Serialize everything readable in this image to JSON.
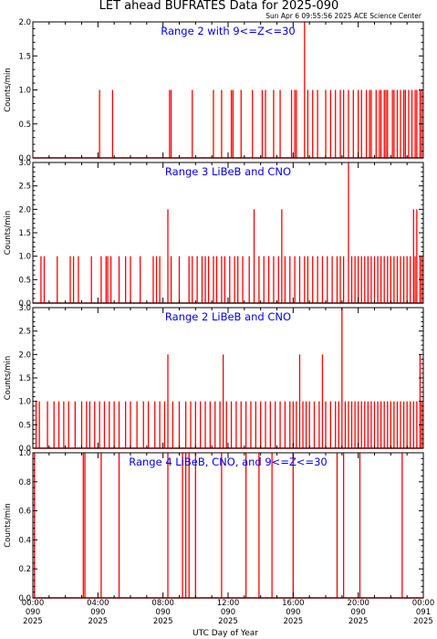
{
  "title": "LET ahead BUFRATES Data for 2025-090",
  "timestamp": "Sun Apr  6 09:55:56 2025 ACE Science Center",
  "xlabel": "UTC Day of Year",
  "colors": {
    "data": "#ff0000",
    "panel_label": "#0000ff",
    "axis": "#000000"
  },
  "chart_data": [
    {
      "type": "line",
      "title": "Range 2 with 9<=Z<=30",
      "ylabel": "Counts/min",
      "xlim": [
        0,
        24
      ],
      "ylim": [
        0,
        2.0
      ],
      "yticks": [
        0.0,
        0.5,
        1.0,
        1.5,
        2.0
      ],
      "ytick_labels": [
        "0.0",
        "0.5",
        "1.0",
        "1.5",
        "2.0"
      ],
      "series": [
        {
          "values": [
            [
              4.1,
              1
            ],
            [
              4.9,
              1
            ],
            [
              8.4,
              1
            ],
            [
              8.5,
              1
            ],
            [
              9.8,
              1
            ],
            [
              11.1,
              1
            ],
            [
              11.6,
              1
            ],
            [
              12.2,
              1
            ],
            [
              12.3,
              1
            ],
            [
              12.8,
              1
            ],
            [
              13.5,
              1
            ],
            [
              14.1,
              1
            ],
            [
              14.3,
              1
            ],
            [
              14.8,
              1
            ],
            [
              15.2,
              1
            ],
            [
              15.9,
              1
            ],
            [
              16.1,
              1
            ],
            [
              16.2,
              1
            ],
            [
              16.7,
              2
            ],
            [
              16.9,
              1
            ],
            [
              17.2,
              1
            ],
            [
              17.5,
              1
            ],
            [
              18.0,
              1
            ],
            [
              18.3,
              1
            ],
            [
              18.6,
              1
            ],
            [
              18.9,
              1
            ],
            [
              19.1,
              1
            ],
            [
              19.4,
              1
            ],
            [
              19.7,
              1
            ],
            [
              20.0,
              1
            ],
            [
              20.2,
              1
            ],
            [
              20.5,
              1
            ],
            [
              20.7,
              1
            ],
            [
              20.8,
              1
            ],
            [
              21.1,
              1
            ],
            [
              21.3,
              1
            ],
            [
              21.4,
              1
            ],
            [
              21.6,
              1
            ],
            [
              21.7,
              1
            ],
            [
              21.8,
              1
            ],
            [
              22.1,
              1
            ],
            [
              22.2,
              1
            ],
            [
              22.4,
              1
            ],
            [
              22.6,
              1
            ],
            [
              22.8,
              1
            ],
            [
              22.9,
              1
            ],
            [
              23.1,
              1
            ],
            [
              23.3,
              1
            ],
            [
              23.5,
              1
            ],
            [
              23.6,
              1
            ],
            [
              23.8,
              1
            ],
            [
              23.9,
              1
            ]
          ]
        }
      ]
    },
    {
      "type": "line",
      "title": "Range 3 LiBeB and CNO",
      "ylabel": "Counts/min",
      "xlim": [
        0,
        24
      ],
      "ylim": [
        0,
        3.0
      ],
      "yticks": [
        0.0,
        0.5,
        1.0,
        1.5,
        2.0,
        2.5,
        3.0
      ],
      "ytick_labels": [
        "0.0",
        "0.5",
        "1.0",
        "1.5",
        "2.0",
        "2.5",
        "3.0"
      ],
      "series": [
        {
          "values": [
            [
              0.5,
              1
            ],
            [
              0.7,
              1
            ],
            [
              1.5,
              1
            ],
            [
              2.3,
              1
            ],
            [
              2.5,
              1
            ],
            [
              2.8,
              1
            ],
            [
              3.6,
              1
            ],
            [
              4.2,
              1
            ],
            [
              4.5,
              1
            ],
            [
              4.6,
              1
            ],
            [
              4.8,
              1
            ],
            [
              5.3,
              1
            ],
            [
              5.7,
              1
            ],
            [
              6.0,
              1
            ],
            [
              6.6,
              1
            ],
            [
              7.4,
              1
            ],
            [
              7.6,
              1
            ],
            [
              7.8,
              1
            ],
            [
              8.3,
              2
            ],
            [
              8.5,
              1
            ],
            [
              9.0,
              1
            ],
            [
              9.6,
              1
            ],
            [
              9.8,
              1
            ],
            [
              10.1,
              1
            ],
            [
              10.4,
              1
            ],
            [
              10.6,
              1
            ],
            [
              10.8,
              1
            ],
            [
              11.1,
              1
            ],
            [
              11.3,
              1
            ],
            [
              11.6,
              1
            ],
            [
              11.8,
              1
            ],
            [
              12.1,
              1
            ],
            [
              12.4,
              1
            ],
            [
              12.6,
              1
            ],
            [
              12.9,
              1
            ],
            [
              13.3,
              1
            ],
            [
              13.6,
              2
            ],
            [
              13.9,
              1
            ],
            [
              14.2,
              1
            ],
            [
              14.5,
              1
            ],
            [
              14.8,
              1
            ],
            [
              15.1,
              1
            ],
            [
              15.3,
              2
            ],
            [
              15.5,
              1
            ],
            [
              15.8,
              1
            ],
            [
              16.1,
              1
            ],
            [
              16.4,
              1
            ],
            [
              16.7,
              1
            ],
            [
              16.9,
              1
            ],
            [
              17.2,
              1
            ],
            [
              17.5,
              1
            ],
            [
              17.8,
              1
            ],
            [
              18.1,
              1
            ],
            [
              18.4,
              1
            ],
            [
              18.7,
              1
            ],
            [
              18.9,
              1
            ],
            [
              19.1,
              1
            ],
            [
              19.4,
              3
            ],
            [
              19.6,
              1
            ],
            [
              19.8,
              1
            ],
            [
              20.0,
              1
            ],
            [
              20.2,
              1
            ],
            [
              20.4,
              1
            ],
            [
              20.6,
              1
            ],
            [
              20.8,
              1
            ],
            [
              21.0,
              1
            ],
            [
              21.2,
              1
            ],
            [
              21.4,
              1
            ],
            [
              21.6,
              1
            ],
            [
              21.8,
              1
            ],
            [
              22.0,
              1
            ],
            [
              22.2,
              1
            ],
            [
              22.4,
              1
            ],
            [
              22.6,
              1
            ],
            [
              22.8,
              1
            ],
            [
              23.0,
              1
            ],
            [
              23.2,
              1
            ],
            [
              23.4,
              2
            ],
            [
              23.5,
              1
            ],
            [
              23.6,
              2
            ],
            [
              23.8,
              1
            ],
            [
              23.9,
              1
            ]
          ]
        }
      ]
    },
    {
      "type": "line",
      "title": "Range 2 LiBeB and CNO",
      "ylabel": "Counts/min",
      "xlim": [
        0,
        24
      ],
      "ylim": [
        0,
        3.0
      ],
      "yticks": [
        0.0,
        0.5,
        1.0,
        1.5,
        2.0,
        2.5,
        3.0
      ],
      "ytick_labels": [
        "0.0",
        "0.5",
        "1.0",
        "1.5",
        "2.0",
        "2.5",
        "3.0"
      ],
      "series": [
        {
          "values": [
            [
              0.2,
              1
            ],
            [
              0.4,
              1
            ],
            [
              0.9,
              1
            ],
            [
              1.3,
              1
            ],
            [
              1.6,
              1
            ],
            [
              1.9,
              1
            ],
            [
              2.2,
              1
            ],
            [
              2.6,
              1
            ],
            [
              3.0,
              1
            ],
            [
              3.3,
              1
            ],
            [
              3.5,
              1
            ],
            [
              3.8,
              1
            ],
            [
              4.1,
              1
            ],
            [
              4.4,
              1
            ],
            [
              4.7,
              1
            ],
            [
              5.0,
              1
            ],
            [
              5.3,
              1
            ],
            [
              5.7,
              1
            ],
            [
              6.0,
              1
            ],
            [
              6.4,
              1
            ],
            [
              6.8,
              1
            ],
            [
              7.1,
              1
            ],
            [
              7.5,
              1
            ],
            [
              7.8,
              1
            ],
            [
              8.1,
              1
            ],
            [
              8.3,
              2
            ],
            [
              8.6,
              1
            ],
            [
              9.0,
              1
            ],
            [
              9.4,
              1
            ],
            [
              9.7,
              1
            ],
            [
              10.0,
              1
            ],
            [
              10.3,
              1
            ],
            [
              10.6,
              1
            ],
            [
              10.9,
              1
            ],
            [
              11.2,
              1
            ],
            [
              11.5,
              1
            ],
            [
              11.7,
              2
            ],
            [
              11.9,
              1
            ],
            [
              12.2,
              1
            ],
            [
              12.5,
              1
            ],
            [
              12.8,
              1
            ],
            [
              13.1,
              1
            ],
            [
              13.4,
              1
            ],
            [
              13.7,
              1
            ],
            [
              14.0,
              1
            ],
            [
              14.3,
              1
            ],
            [
              14.6,
              1
            ],
            [
              14.9,
              1
            ],
            [
              15.2,
              1
            ],
            [
              15.5,
              1
            ],
            [
              15.8,
              1
            ],
            [
              16.0,
              1
            ],
            [
              16.2,
              1
            ],
            [
              16.4,
              2
            ],
            [
              16.6,
              1
            ],
            [
              16.8,
              1
            ],
            [
              17.0,
              1
            ],
            [
              17.3,
              1
            ],
            [
              17.6,
              1
            ],
            [
              17.8,
              2
            ],
            [
              18.0,
              1
            ],
            [
              18.3,
              1
            ],
            [
              18.6,
              1
            ],
            [
              18.8,
              1
            ],
            [
              19.0,
              3
            ],
            [
              19.2,
              1
            ],
            [
              19.4,
              1
            ],
            [
              19.6,
              1
            ],
            [
              19.8,
              1
            ],
            [
              20.0,
              1
            ],
            [
              20.2,
              1
            ],
            [
              20.4,
              1
            ],
            [
              20.6,
              1
            ],
            [
              20.8,
              1
            ],
            [
              21.0,
              1
            ],
            [
              21.2,
              1
            ],
            [
              21.4,
              1
            ],
            [
              21.6,
              1
            ],
            [
              21.8,
              1
            ],
            [
              22.0,
              1
            ],
            [
              22.2,
              1
            ],
            [
              22.4,
              1
            ],
            [
              22.6,
              1
            ],
            [
              22.8,
              1
            ],
            [
              23.0,
              1
            ],
            [
              23.2,
              1
            ],
            [
              23.4,
              1
            ],
            [
              23.6,
              1
            ],
            [
              23.8,
              2
            ],
            [
              23.9,
              1
            ]
          ]
        }
      ]
    },
    {
      "type": "line",
      "title": "Range 4 LiBeB, CNO, and 9<=Z<=30",
      "ylabel": "Counts/min",
      "xlim": [
        0,
        24
      ],
      "ylim": [
        0,
        1.0
      ],
      "yticks": [
        0.0,
        0.2,
        0.4,
        0.6,
        0.8,
        1.0
      ],
      "ytick_labels": [
        "0.0",
        "0.2",
        "0.4",
        "0.6",
        "0.8",
        "1.0"
      ],
      "series": [
        {
          "values": [
            [
              0.1,
              1
            ],
            [
              3.1,
              1
            ],
            [
              3.2,
              1
            ],
            [
              4.2,
              1
            ],
            [
              5.3,
              1
            ],
            [
              8.3,
              1
            ],
            [
              9.2,
              1
            ],
            [
              9.4,
              1
            ],
            [
              9.6,
              1
            ],
            [
              10.0,
              1
            ],
            [
              11.6,
              1
            ],
            [
              13.1,
              1
            ],
            [
              13.9,
              1
            ],
            [
              14.7,
              1
            ],
            [
              16.0,
              1
            ],
            [
              18.7,
              1
            ],
            [
              19.1,
              1
            ],
            [
              20.1,
              1
            ],
            [
              22.7,
              1
            ]
          ]
        }
      ]
    }
  ],
  "xticks": [
    {
      "hour": 0,
      "labels": [
        "00:00",
        "090",
        "2025"
      ]
    },
    {
      "hour": 4,
      "labels": [
        "04:00",
        "090",
        "2025"
      ]
    },
    {
      "hour": 8,
      "labels": [
        "08:00",
        "090",
        "2025"
      ]
    },
    {
      "hour": 12,
      "labels": [
        "12:00",
        "090",
        "2025"
      ]
    },
    {
      "hour": 16,
      "labels": [
        "16:00",
        "090",
        "2025"
      ]
    },
    {
      "hour": 20,
      "labels": [
        "20:00",
        "090",
        "2025"
      ]
    },
    {
      "hour": 24,
      "labels": [
        "00:00",
        "091",
        "2025"
      ]
    }
  ]
}
